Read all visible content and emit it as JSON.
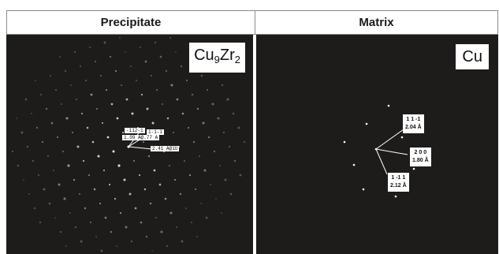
{
  "headers": {
    "left": "Precipitate",
    "right": "Matrix"
  },
  "precipitate": {
    "phase_base": "Cu",
    "phase_sub1": "9",
    "phase_mid": "Zr",
    "phase_sub2": "2",
    "tag1": "-112-1",
    "tag2": "1-1-1",
    "tag3": "1.09 A@.77 A",
    "tag4": "2.41 A@1U"
  },
  "matrix": {
    "phase": "Cu",
    "labels": [
      {
        "miller": "1 1 -1",
        "d": "2.04 Å"
      },
      {
        "miller": "2 0 0",
        "d": "1.80 Å"
      },
      {
        "miller": "1 -1 1",
        "d": "2.12 Å"
      }
    ]
  },
  "colors": {
    "panel_background": "#1e1b1b",
    "spot": "#ffffff",
    "header_border": "#8a8a8a"
  }
}
